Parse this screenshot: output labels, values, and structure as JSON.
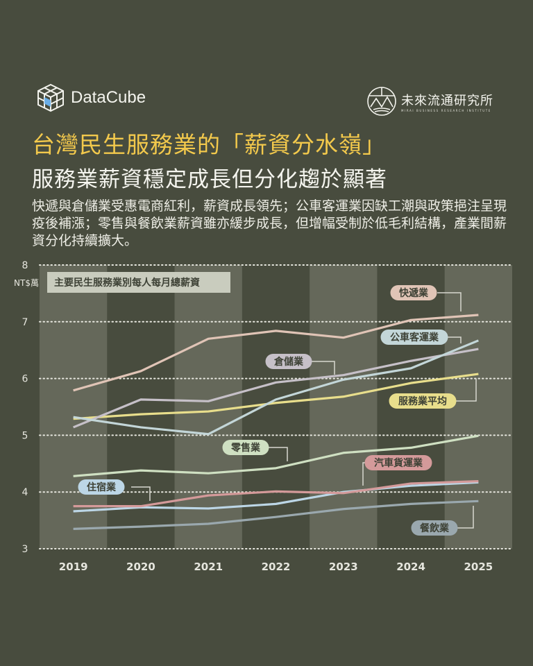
{
  "header": {
    "brand": "DataCube",
    "brand_icon": "cube-icon",
    "institute": "未來流通研究所",
    "institute_sub": "MIRAI BUSINESS RESEARCH INSTITUTE",
    "institute_icon": "mountain-circle-logo",
    "title": "台灣民生服務業的「薪資分水嶺」",
    "subtitle": "服務業薪資穩定成長但分化趨於顯著",
    "description": "快遞與倉儲業受惠電商紅利，薪資成長領先；公車客運業因缺工潮與政策挹注呈現疫後補漲；零售與餐飲業薪資雖亦緩步成長，但增幅受制於低毛利結構，產業間薪資分化持續擴大。"
  },
  "colors": {
    "background": "#484c3e",
    "band": "#65685a",
    "title": "#f3c94c"
  },
  "chart_data": {
    "type": "line",
    "title": "主要民生服務業別每人每月總薪資",
    "ylabel": "NT$萬",
    "ylim": [
      3,
      8
    ],
    "yticks": [
      "3",
      "4",
      "5",
      "6",
      "7",
      "8"
    ],
    "grid": true,
    "categories": [
      "2019",
      "2020",
      "2021",
      "2022",
      "2023",
      "2024",
      "2025"
    ],
    "series": [
      {
        "name": "快遞業",
        "color": "#e0c4b6",
        "values": [
          5.79,
          6.13,
          6.7,
          6.84,
          6.72,
          7.03,
          7.12
        ]
      },
      {
        "name": "公車客運業",
        "color": "#c3d6d8",
        "values": [
          5.32,
          5.14,
          5.02,
          5.63,
          5.98,
          6.18,
          6.67
        ]
      },
      {
        "name": "倉儲業",
        "color": "#c6c0c8",
        "values": [
          5.14,
          5.63,
          5.6,
          5.93,
          6.06,
          6.31,
          6.52
        ]
      },
      {
        "name": "服務業平均",
        "color": "#e8de8c",
        "values": [
          5.29,
          5.37,
          5.42,
          5.57,
          5.68,
          5.92,
          6.08
        ]
      },
      {
        "name": "零售業",
        "color": "#cfe0c2",
        "values": [
          4.28,
          4.38,
          4.33,
          4.42,
          4.69,
          4.78,
          4.99
        ]
      },
      {
        "name": "汽車貨運業",
        "color": "#d49a9a",
        "values": [
          3.75,
          3.75,
          3.94,
          4.01,
          3.98,
          4.15,
          4.19
        ]
      },
      {
        "name": "住宿業",
        "color": "#bcd6e6",
        "values": [
          3.66,
          3.73,
          3.71,
          3.79,
          4.0,
          4.11,
          4.17
        ]
      },
      {
        "name": "餐飲業",
        "color": "#9aa8ae",
        "values": [
          3.35,
          3.39,
          3.44,
          3.56,
          3.7,
          3.79,
          3.84
        ]
      }
    ]
  }
}
